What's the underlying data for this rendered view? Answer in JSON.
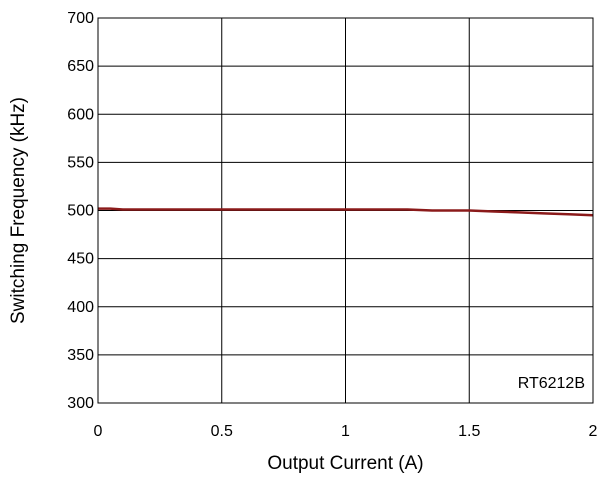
{
  "chart_data": {
    "type": "line",
    "xlabel": "Output Current (A)",
    "ylabel": "Switching Frequency (kHz)",
    "xlim": [
      0,
      2
    ],
    "ylim": [
      300,
      700
    ],
    "xticks": [
      0,
      0.5,
      1,
      1.5,
      2
    ],
    "xtick_labels": [
      "0",
      "0.5",
      "1",
      "1.5",
      "2"
    ],
    "yticks": [
      300,
      350,
      400,
      450,
      500,
      550,
      600,
      650,
      700
    ],
    "ytick_labels": [
      "300",
      "350",
      "400",
      "450",
      "500",
      "550",
      "600",
      "650",
      "700"
    ],
    "grid": true,
    "annotation": "RT6212B",
    "series": [
      {
        "color": "#8b1a1a",
        "x": [
          0,
          0.05,
          0.1,
          0.3,
          0.5,
          0.7,
          0.9,
          1.1,
          1.25,
          1.35,
          1.5,
          1.6,
          1.7,
          1.8,
          1.9,
          2.0
        ],
        "y": [
          502,
          502,
          501,
          501,
          501,
          501,
          501,
          501,
          501,
          500,
          500,
          499,
          498,
          497,
          496,
          495
        ]
      }
    ]
  }
}
